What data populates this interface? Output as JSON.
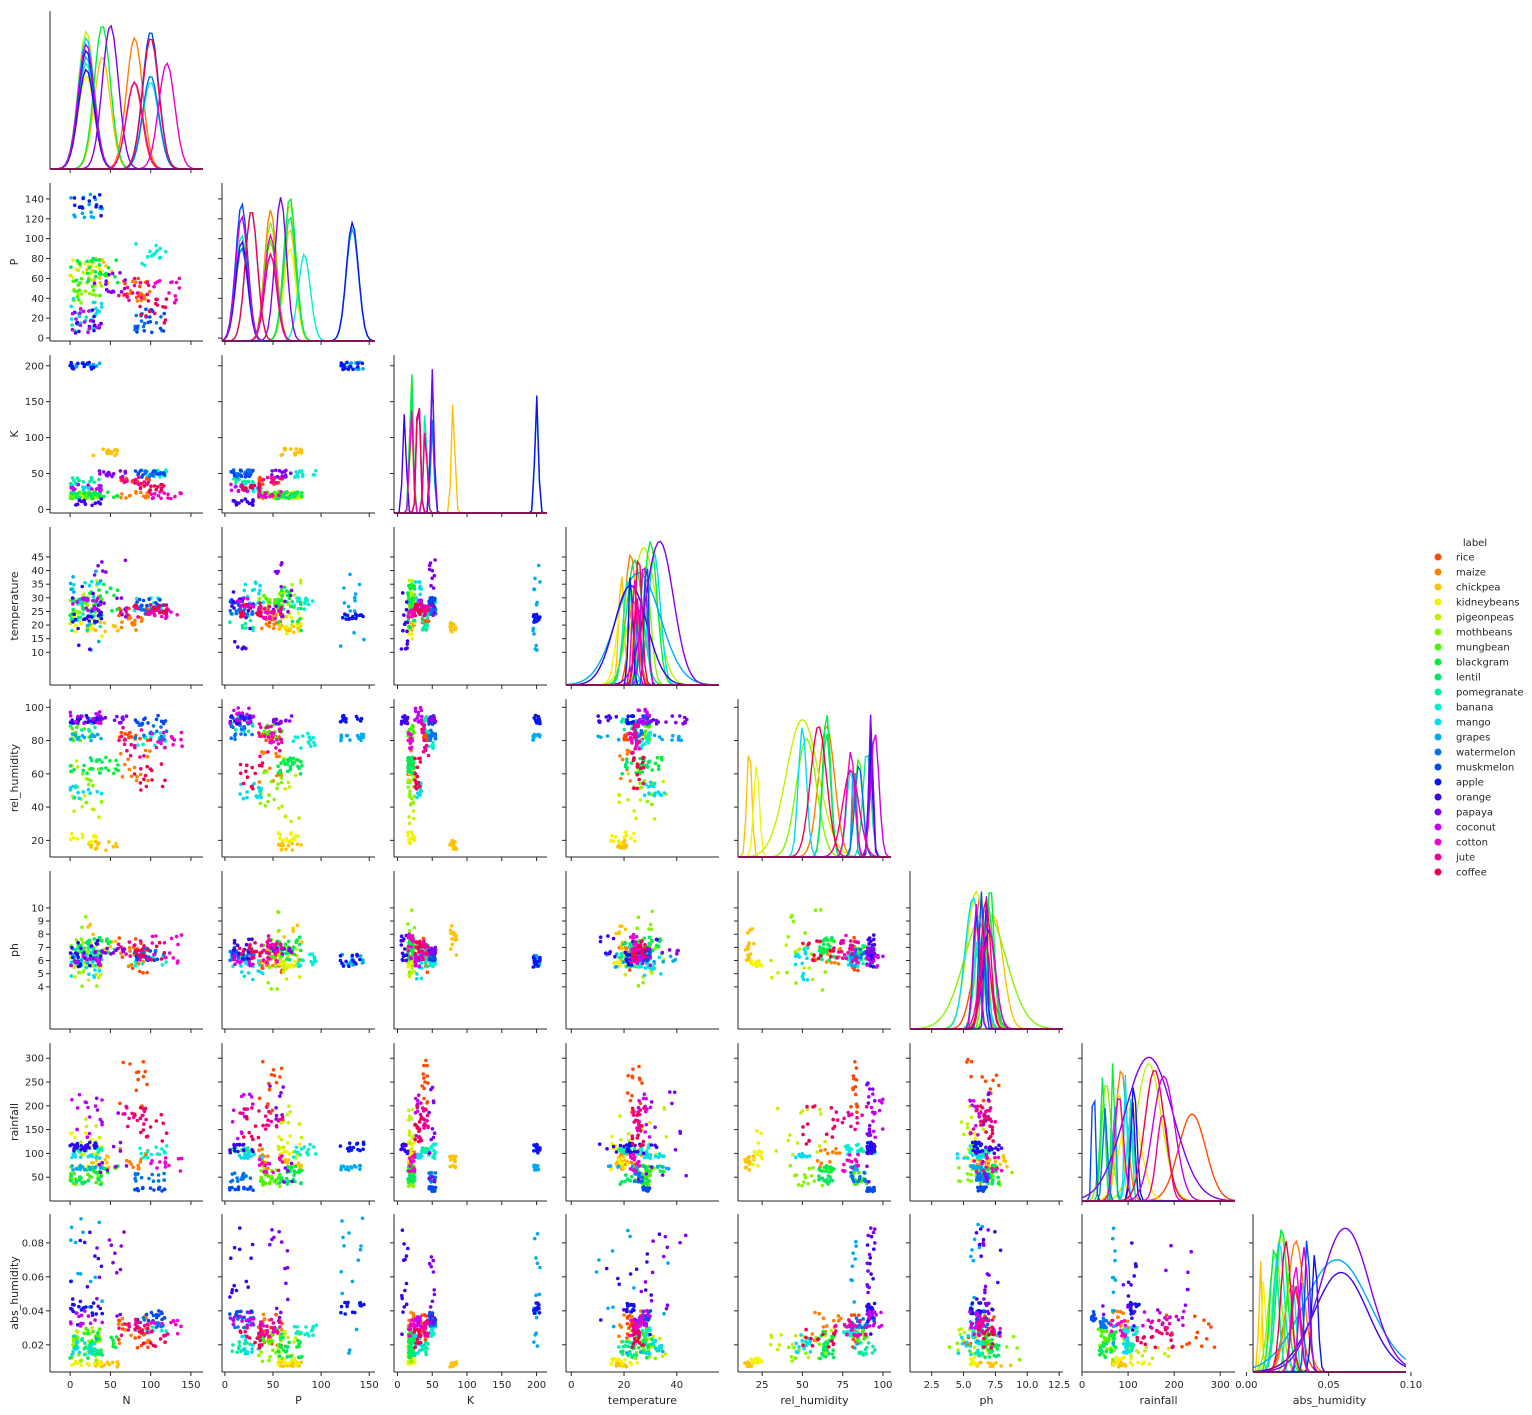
{
  "chart_data": {
    "type": "scatter",
    "subtype": "pairplot-corner",
    "variables": [
      "N",
      "P",
      "K",
      "temperature",
      "rel_humidity",
      "ph",
      "rainfall",
      "abs_humidity"
    ],
    "diagonal": "kde",
    "axis_ranges": {
      "N": [
        -25,
        165
      ],
      "P": [
        -3,
        156
      ],
      "K": [
        -5,
        215
      ],
      "temperature": [
        -2,
        56
      ],
      "rel_humidity": [
        10,
        105
      ],
      "ph": [
        0.8,
        12.8
      ],
      "rainfall": [
        0,
        332
      ],
      "abs_humidity": [
        0.004,
        0.097
      ]
    },
    "ticks": {
      "N": [
        "0",
        "50",
        "100",
        "150"
      ],
      "P": [
        "0",
        "20",
        "40",
        "60",
        "80",
        "100",
        "120",
        "140"
      ],
      "P_x": [
        "0",
        "50",
        "100",
        "150"
      ],
      "K": [
        "0",
        "50",
        "100",
        "150",
        "200"
      ],
      "temperature": [
        "10",
        "15",
        "20",
        "25",
        "30",
        "35",
        "40",
        "45"
      ],
      "temperature_x": [
        "0",
        "20",
        "40"
      ],
      "rel_humidity": [
        "20",
        "40",
        "60",
        "80",
        "100"
      ],
      "rel_humidity_x": [
        "25",
        "50",
        "75",
        "100"
      ],
      "ph": [
        "4",
        "5",
        "6",
        "7",
        "8",
        "9",
        "10"
      ],
      "ph_x": [
        "2.5",
        "5.0",
        "7.5",
        "10.0",
        "12.5"
      ],
      "rainfall": [
        "50",
        "100",
        "150",
        "200",
        "250",
        "300"
      ],
      "rainfall_x": [
        "0",
        "100",
        "200",
        "300"
      ],
      "abs_humidity": [
        "0.02",
        "0.04",
        "0.06",
        "0.08"
      ],
      "abs_humidity_x": [
        "0.00",
        "0.05",
        "0.10"
      ]
    },
    "legend": {
      "title": "label",
      "placement": "right",
      "entries": [
        {
          "name": "rice",
          "color": "#ff4b00"
        },
        {
          "name": "maize",
          "color": "#ff7f00"
        },
        {
          "name": "chickpea",
          "color": "#ffc200"
        },
        {
          "name": "kidneybeans",
          "color": "#f4f400"
        },
        {
          "name": "pigeonpeas",
          "color": "#c2f200"
        },
        {
          "name": "mothbeans",
          "color": "#86f500"
        },
        {
          "name": "mungbean",
          "color": "#45f500"
        },
        {
          "name": "blackgram",
          "color": "#00f03c"
        },
        {
          "name": "lentil",
          "color": "#00e864"
        },
        {
          "name": "pomegranate",
          "color": "#00f0a0"
        },
        {
          "name": "banana",
          "color": "#00f0d2"
        },
        {
          "name": "mango",
          "color": "#00dcf0"
        },
        {
          "name": "grapes",
          "color": "#00aaf0"
        },
        {
          "name": "watermelon",
          "color": "#0073f0"
        },
        {
          "name": "muskmelon",
          "color": "#004bf0"
        },
        {
          "name": "apple",
          "color": "#0a14f0"
        },
        {
          "name": "orange",
          "color": "#3c00f0"
        },
        {
          "name": "papaya",
          "color": "#8200f0"
        },
        {
          "name": "coconut",
          "color": "#c800f0"
        },
        {
          "name": "cotton",
          "color": "#f000c8"
        },
        {
          "name": "jute",
          "color": "#f00096"
        },
        {
          "name": "coffee",
          "color": "#f00050"
        }
      ]
    },
    "crops": [
      {
        "N": [
          60,
          99
        ],
        "P": [
          35,
          60
        ],
        "K": [
          35,
          45
        ],
        "temperature": [
          20,
          27
        ],
        "rel_humidity": [
          80,
          85
        ],
        "ph": [
          5,
          7.8
        ],
        "rainfall": [
          180,
          298
        ],
        "abs_humidity": [
          0.018,
          0.038
        ]
      },
      {
        "N": [
          60,
          100
        ],
        "P": [
          35,
          60
        ],
        "K": [
          15,
          25
        ],
        "temperature": [
          18,
          27
        ],
        "rel_humidity": [
          55,
          75
        ],
        "ph": [
          5.5,
          7
        ],
        "rainfall": [
          60,
          110
        ],
        "abs_humidity": [
          0.02,
          0.04
        ]
      },
      {
        "N": [
          20,
          60
        ],
        "P": [
          55,
          80
        ],
        "K": [
          75,
          85
        ],
        "temperature": [
          17,
          21
        ],
        "rel_humidity": [
          14,
          20
        ],
        "ph": [
          6,
          8.8
        ],
        "rainfall": [
          65,
          95
        ],
        "abs_humidity": [
          0.007,
          0.01
        ]
      },
      {
        "N": [
          0,
          40
        ],
        "P": [
          55,
          80
        ],
        "K": [
          15,
          25
        ],
        "temperature": [
          15,
          25
        ],
        "rel_humidity": [
          18,
          25
        ],
        "ph": [
          5.5,
          6
        ],
        "rainfall": [
          60,
          150
        ],
        "abs_humidity": [
          0.008,
          0.013
        ]
      },
      {
        "N": [
          0,
          40
        ],
        "P": [
          55,
          80
        ],
        "K": [
          15,
          25
        ],
        "temperature": [
          18,
          37
        ],
        "rel_humidity": [
          30,
          70
        ],
        "ph": [
          4.5,
          7.5
        ],
        "rainfall": [
          90,
          200
        ],
        "abs_humidity": [
          0.012,
          0.03
        ]
      },
      {
        "N": [
          0,
          40
        ],
        "P": [
          35,
          60
        ],
        "K": [
          15,
          25
        ],
        "temperature": [
          24,
          32
        ],
        "rel_humidity": [
          40,
          65
        ],
        "ph": [
          3.5,
          9.9
        ],
        "rainfall": [
          30,
          75
        ],
        "abs_humidity": [
          0.01,
          0.025
        ]
      },
      {
        "N": [
          0,
          40
        ],
        "P": [
          35,
          60
        ],
        "K": [
          15,
          25
        ],
        "temperature": [
          27,
          30
        ],
        "rel_humidity": [
          80,
          90
        ],
        "ph": [
          6.2,
          7.2
        ],
        "rainfall": [
          35,
          60
        ],
        "abs_humidity": [
          0.022,
          0.03
        ]
      },
      {
        "N": [
          20,
          60
        ],
        "P": [
          55,
          80
        ],
        "K": [
          15,
          25
        ],
        "temperature": [
          25,
          35
        ],
        "rel_humidity": [
          60,
          70
        ],
        "ph": [
          6.5,
          7.7
        ],
        "rainfall": [
          60,
          75
        ],
        "abs_humidity": [
          0.015,
          0.028
        ]
      },
      {
        "N": [
          0,
          40
        ],
        "P": [
          55,
          80
        ],
        "K": [
          15,
          25
        ],
        "temperature": [
          18,
          30
        ],
        "rel_humidity": [
          60,
          70
        ],
        "ph": [
          6,
          7.8
        ],
        "rainfall": [
          35,
          55
        ],
        "abs_humidity": [
          0.012,
          0.022
        ]
      },
      {
        "N": [
          0,
          40
        ],
        "P": [
          5,
          30
        ],
        "K": [
          35,
          45
        ],
        "temperature": [
          18,
          25
        ],
        "rel_humidity": [
          85,
          95
        ],
        "ph": [
          5.5,
          7.2
        ],
        "rainfall": [
          100,
          112
        ],
        "abs_humidity": [
          0.014,
          0.022
        ]
      },
      {
        "N": [
          80,
          120
        ],
        "P": [
          70,
          95
        ],
        "K": [
          45,
          55
        ],
        "temperature": [
          25,
          30
        ],
        "rel_humidity": [
          75,
          85
        ],
        "ph": [
          5.5,
          6.5
        ],
        "rainfall": [
          90,
          120
        ],
        "abs_humidity": [
          0.025,
          0.032
        ]
      },
      {
        "N": [
          0,
          40
        ],
        "P": [
          15,
          40
        ],
        "K": [
          25,
          35
        ],
        "temperature": [
          27,
          36
        ],
        "rel_humidity": [
          45,
          55
        ],
        "ph": [
          4.5,
          7
        ],
        "rainfall": [
          90,
          100
        ],
        "abs_humidity": [
          0.014,
          0.026
        ]
      },
      {
        "N": [
          0,
          40
        ],
        "P": [
          120,
          145
        ],
        "K": [
          195,
          205
        ],
        "temperature": [
          9,
          42
        ],
        "rel_humidity": [
          80,
          84
        ],
        "ph": [
          5.5,
          6.5
        ],
        "rainfall": [
          65,
          75
        ],
        "abs_humidity": [
          0.015,
          0.095
        ]
      },
      {
        "N": [
          80,
          120
        ],
        "P": [
          5,
          30
        ],
        "K": [
          45,
          55
        ],
        "temperature": [
          24,
          27
        ],
        "rel_humidity": [
          80,
          90
        ],
        "ph": [
          6,
          7
        ],
        "rainfall": [
          40,
          60
        ],
        "abs_humidity": [
          0.03,
          0.036
        ]
      },
      {
        "N": [
          80,
          120
        ],
        "P": [
          5,
          30
        ],
        "K": [
          45,
          55
        ],
        "temperature": [
          27,
          30
        ],
        "rel_humidity": [
          90,
          95
        ],
        "ph": [
          6,
          6.8
        ],
        "rainfall": [
          20,
          30
        ],
        "abs_humidity": [
          0.034,
          0.04
        ]
      },
      {
        "N": [
          0,
          40
        ],
        "P": [
          120,
          145
        ],
        "K": [
          195,
          205
        ],
        "temperature": [
          21,
          24
        ],
        "rel_humidity": [
          90,
          95
        ],
        "ph": [
          5.5,
          6.5
        ],
        "rainfall": [
          100,
          125
        ],
        "abs_humidity": [
          0.038,
          0.045
        ]
      },
      {
        "N": [
          0,
          40
        ],
        "P": [
          5,
          30
        ],
        "K": [
          5,
          15
        ],
        "temperature": [
          10,
          35
        ],
        "rel_humidity": [
          90,
          95
        ],
        "ph": [
          6,
          8
        ],
        "rainfall": [
          100,
          120
        ],
        "abs_humidity": [
          0.025,
          0.09
        ]
      },
      {
        "N": [
          30,
          70
        ],
        "P": [
          46,
          70
        ],
        "K": [
          45,
          55
        ],
        "temperature": [
          23,
          44
        ],
        "rel_humidity": [
          90,
          95
        ],
        "ph": [
          6.5,
          7
        ],
        "rainfall": [
          40,
          250
        ],
        "abs_humidity": [
          0.03,
          0.09
        ]
      },
      {
        "N": [
          0,
          40
        ],
        "P": [
          5,
          30
        ],
        "K": [
          25,
          35
        ],
        "temperature": [
          25,
          30
        ],
        "rel_humidity": [
          90,
          100
        ],
        "ph": [
          5.5,
          6.5
        ],
        "rainfall": [
          130,
          225
        ],
        "abs_humidity": [
          0.03,
          0.04
        ]
      },
      {
        "N": [
          100,
          140
        ],
        "P": [
          35,
          60
        ],
        "K": [
          15,
          25
        ],
        "temperature": [
          22,
          26
        ],
        "rel_humidity": [
          75,
          85
        ],
        "ph": [
          5.8,
          8
        ],
        "rainfall": [
          60,
          100
        ],
        "abs_humidity": [
          0.025,
          0.035
        ]
      },
      {
        "N": [
          60,
          100
        ],
        "P": [
          35,
          60
        ],
        "K": [
          35,
          45
        ],
        "temperature": [
          23,
          27
        ],
        "rel_humidity": [
          70,
          90
        ],
        "ph": [
          6,
          7.5
        ],
        "rainfall": [
          150,
          200
        ],
        "abs_humidity": [
          0.025,
          0.035
        ]
      },
      {
        "N": [
          80,
          120
        ],
        "P": [
          15,
          40
        ],
        "K": [
          25,
          35
        ],
        "temperature": [
          23,
          28
        ],
        "rel_humidity": [
          50,
          70
        ],
        "ph": [
          6,
          7.5
        ],
        "rainfall": [
          115,
          200
        ],
        "abs_humidity": [
          0.018,
          0.03
        ]
      }
    ]
  }
}
